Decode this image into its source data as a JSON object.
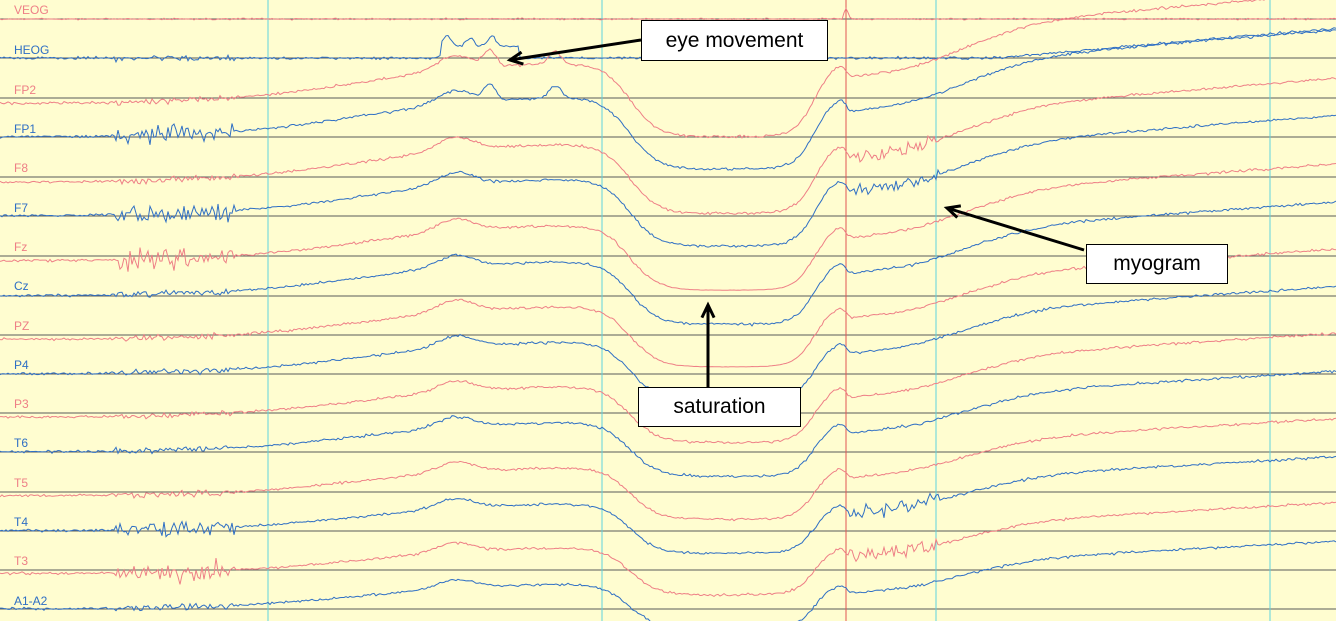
{
  "chart_data": {
    "type": "line",
    "title": "",
    "xlabel": "",
    "ylabel": "",
    "grid": true,
    "colors": {
      "background": "#fffdd0",
      "blue": "#2f6fc4",
      "red": "#ee7f86",
      "grid": "#5a5a5a",
      "time_marker": "#5fd2de",
      "event_marker": "#e05555"
    },
    "channels": [
      {
        "name": "VEOG",
        "color": "red"
      },
      {
        "name": "HEOG",
        "color": "blue"
      },
      {
        "name": "FP2",
        "color": "red"
      },
      {
        "name": "FP1",
        "color": "blue"
      },
      {
        "name": "F8",
        "color": "red"
      },
      {
        "name": "F7",
        "color": "blue"
      },
      {
        "name": "Fz",
        "color": "red"
      },
      {
        "name": "Cz",
        "color": "blue"
      },
      {
        "name": "PZ",
        "color": "red"
      },
      {
        "name": "P4",
        "color": "blue"
      },
      {
        "name": "P3",
        "color": "red"
      },
      {
        "name": "T6",
        "color": "blue"
      },
      {
        "name": "T5",
        "color": "red"
      },
      {
        "name": "T4",
        "color": "blue"
      },
      {
        "name": "T3",
        "color": "red"
      },
      {
        "name": "A1-A2",
        "color": "blue"
      }
    ],
    "annotations": [
      {
        "text": "eye movement"
      },
      {
        "text": "myogram"
      },
      {
        "text": "saturation"
      }
    ]
  }
}
